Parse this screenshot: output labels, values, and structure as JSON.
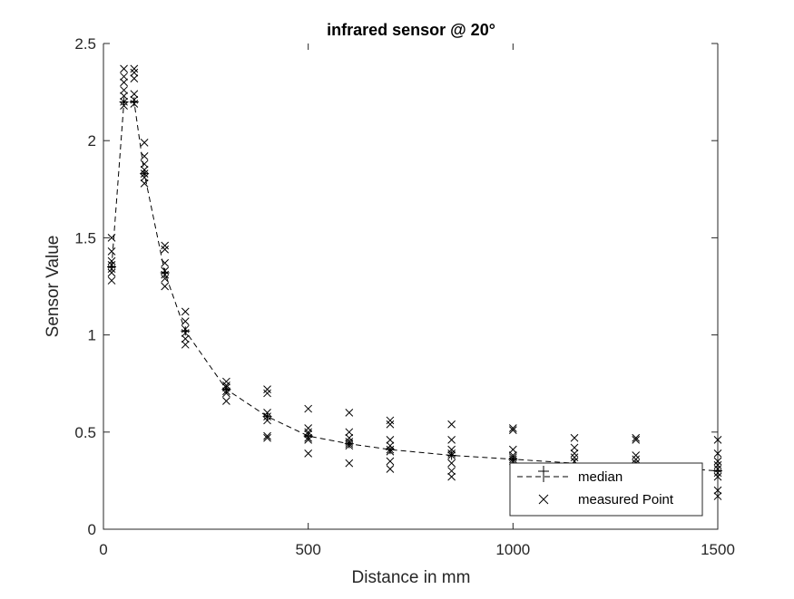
{
  "chart_data": {
    "type": "scatter",
    "title": "infrared sensor @ 20°",
    "xlabel": "Distance in mm",
    "ylabel": "Sensor Value",
    "xlim": [
      0,
      1500
    ],
    "ylim": [
      0,
      2.5
    ],
    "xticks": [
      0,
      500,
      1000,
      1500
    ],
    "xtick_labels": [
      "0",
      "500",
      "1000",
      "1500"
    ],
    "yticks": [
      0,
      0.5,
      1,
      1.5,
      2,
      2.5
    ],
    "ytick_labels": [
      "0",
      "0.5",
      "1",
      "1.5",
      "2",
      "2.5"
    ],
    "grid": false,
    "legend_position": "bottom-right",
    "series": [
      {
        "name": "median",
        "style": "dashed line with plus markers",
        "color": "#000000",
        "x": [
          20,
          50,
          75,
          100,
          150,
          200,
          300,
          400,
          500,
          600,
          700,
          850,
          1000,
          1150,
          1300,
          1500
        ],
        "y": [
          1.35,
          2.2,
          2.2,
          1.83,
          1.32,
          1.02,
          0.72,
          0.58,
          0.48,
          0.44,
          0.41,
          0.38,
          0.36,
          0.34,
          0.33,
          0.3
        ]
      },
      {
        "name": "measured Point",
        "style": "x markers",
        "color": "#000000",
        "points": [
          [
            20,
            1.5
          ],
          [
            20,
            1.43
          ],
          [
            20,
            1.38
          ],
          [
            20,
            1.36
          ],
          [
            20,
            1.34
          ],
          [
            20,
            1.32
          ],
          [
            20,
            1.28
          ],
          [
            50,
            2.37
          ],
          [
            50,
            2.33
          ],
          [
            50,
            2.3
          ],
          [
            50,
            2.26
          ],
          [
            50,
            2.23
          ],
          [
            50,
            2.2
          ],
          [
            50,
            2.18
          ],
          [
            75,
            2.37
          ],
          [
            75,
            2.35
          ],
          [
            75,
            2.32
          ],
          [
            75,
            2.24
          ],
          [
            75,
            2.21
          ],
          [
            75,
            2.19
          ],
          [
            100,
            1.99
          ],
          [
            100,
            1.92
          ],
          [
            100,
            1.88
          ],
          [
            100,
            1.85
          ],
          [
            100,
            1.83
          ],
          [
            100,
            1.81
          ],
          [
            100,
            1.78
          ],
          [
            150,
            1.46
          ],
          [
            150,
            1.44
          ],
          [
            150,
            1.37
          ],
          [
            150,
            1.33
          ],
          [
            150,
            1.31
          ],
          [
            150,
            1.29
          ],
          [
            150,
            1.25
          ],
          [
            200,
            1.12
          ],
          [
            200,
            1.07
          ],
          [
            200,
            1.03
          ],
          [
            200,
            1.01
          ],
          [
            200,
            0.98
          ],
          [
            200,
            0.95
          ],
          [
            300,
            0.76
          ],
          [
            300,
            0.74
          ],
          [
            300,
            0.73
          ],
          [
            300,
            0.71
          ],
          [
            300,
            0.7
          ],
          [
            300,
            0.66
          ],
          [
            400,
            0.72
          ],
          [
            400,
            0.7
          ],
          [
            400,
            0.6
          ],
          [
            400,
            0.58
          ],
          [
            400,
            0.56
          ],
          [
            400,
            0.48
          ],
          [
            400,
            0.47
          ],
          [
            500,
            0.62
          ],
          [
            500,
            0.52
          ],
          [
            500,
            0.5
          ],
          [
            500,
            0.49
          ],
          [
            500,
            0.47
          ],
          [
            500,
            0.46
          ],
          [
            500,
            0.39
          ],
          [
            600,
            0.6
          ],
          [
            600,
            0.5
          ],
          [
            600,
            0.47
          ],
          [
            600,
            0.45
          ],
          [
            600,
            0.44
          ],
          [
            600,
            0.43
          ],
          [
            600,
            0.34
          ],
          [
            700,
            0.56
          ],
          [
            700,
            0.54
          ],
          [
            700,
            0.46
          ],
          [
            700,
            0.43
          ],
          [
            700,
            0.41
          ],
          [
            700,
            0.4
          ],
          [
            700,
            0.35
          ],
          [
            700,
            0.31
          ],
          [
            850,
            0.54
          ],
          [
            850,
            0.46
          ],
          [
            850,
            0.41
          ],
          [
            850,
            0.39
          ],
          [
            850,
            0.38
          ],
          [
            850,
            0.34
          ],
          [
            850,
            0.3
          ],
          [
            850,
            0.27
          ],
          [
            1000,
            0.52
          ],
          [
            1000,
            0.51
          ],
          [
            1000,
            0.41
          ],
          [
            1000,
            0.38
          ],
          [
            1000,
            0.37
          ],
          [
            1000,
            0.36
          ],
          [
            1000,
            0.35
          ],
          [
            1150,
            0.47
          ],
          [
            1150,
            0.42
          ],
          [
            1150,
            0.39
          ],
          [
            1150,
            0.37
          ],
          [
            1150,
            0.35
          ],
          [
            1300,
            0.47
          ],
          [
            1300,
            0.46
          ],
          [
            1300,
            0.38
          ],
          [
            1300,
            0.36
          ],
          [
            1300,
            0.34
          ],
          [
            1500,
            0.46
          ],
          [
            1500,
            0.39
          ],
          [
            1500,
            0.35
          ],
          [
            1500,
            0.33
          ],
          [
            1500,
            0.31
          ],
          [
            1500,
            0.29
          ],
          [
            1500,
            0.27
          ],
          [
            1500,
            0.2
          ],
          [
            1500,
            0.17
          ]
        ]
      }
    ]
  }
}
